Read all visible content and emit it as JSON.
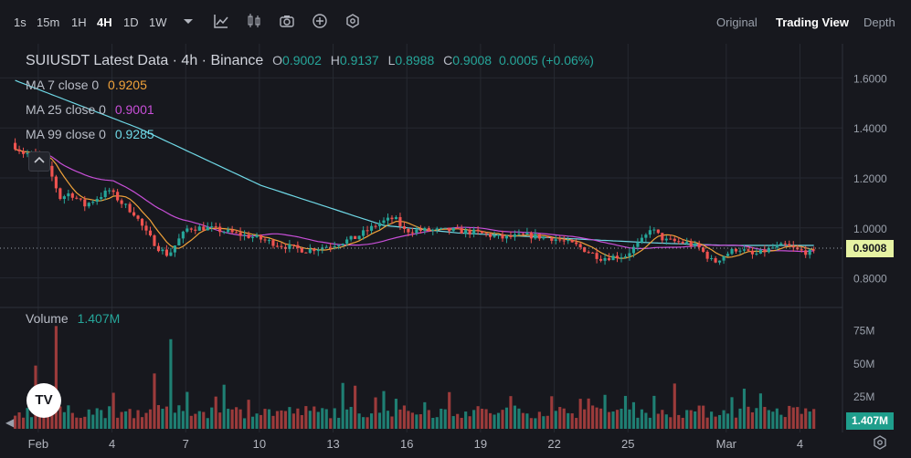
{
  "toolbar": {
    "timeframes": [
      "1s",
      "15m",
      "1H",
      "4H",
      "1D",
      "1W"
    ],
    "active_timeframe": "4H",
    "tools": [
      "chevron-down-icon",
      "indicator-icon",
      "candle-type-icon",
      "camera-icon",
      "plus-circle-icon",
      "settings-hex-icon"
    ],
    "views": [
      "Original",
      "Trading View",
      "Depth"
    ],
    "active_view": "Trading View"
  },
  "legend": {
    "title": "SUIUSDT Latest Data · 4h · Binance",
    "ohlc": {
      "o_label": "O",
      "o": "0.9002",
      "h_label": "H",
      "h": "0.9137",
      "l_label": "L",
      "l": "0.8988",
      "c_label": "C",
      "c": "0.9008",
      "change": "0.0005 (+0.06%)"
    },
    "ma7": {
      "label": "MA 7 close 0",
      "value": "0.9205",
      "color": "#f0a23a"
    },
    "ma25": {
      "label": "MA 25 close 0",
      "value": "0.9001",
      "color": "#c84fd8"
    },
    "ma99": {
      "label": "MA 99 close 0",
      "value": "0.9285",
      "color": "#6fd8e6"
    },
    "volume": {
      "label": "Volume",
      "value": "1.407M"
    }
  },
  "current_price": "0.9008",
  "current_volume": "1.407M",
  "colors": {
    "up": "#26a69a",
    "down": "#ef5350",
    "vol_up": "#1f7f73",
    "vol_down": "#9c3b3b",
    "grid": "#262931"
  },
  "chart_data": {
    "type": "candlestick",
    "price_axis": {
      "ticks": [
        "1.6000",
        "1.4000",
        "1.2000",
        "1.0000",
        "0.8000"
      ],
      "ylim": [
        0.7,
        1.7
      ]
    },
    "volume_axis": {
      "ticks": [
        "75M",
        "50M",
        "25M"
      ],
      "ylim": [
        0,
        90
      ]
    },
    "x_ticks": [
      "Feb",
      "4",
      "7",
      "10",
      "13",
      "16",
      "19",
      "22",
      "25",
      "Mar",
      "4"
    ],
    "x_tick_days": [
      1,
      4,
      7,
      10,
      13,
      16,
      19,
      22,
      25,
      29,
      32
    ],
    "x_range_days": [
      0,
      32.8
    ],
    "candle_interval_days": 0.1667,
    "price_anchors": [
      [
        0,
        1.34
      ],
      [
        0.5,
        1.3
      ],
      [
        1.2,
        1.29
      ],
      [
        1.6,
        1.22
      ],
      [
        2.0,
        1.12
      ],
      [
        2.4,
        1.14
      ],
      [
        3.0,
        1.09
      ],
      [
        3.5,
        1.12
      ],
      [
        4.0,
        1.15
      ],
      [
        4.5,
        1.1
      ],
      [
        5.0,
        1.06
      ],
      [
        5.5,
        0.98
      ],
      [
        6.0,
        0.92
      ],
      [
        6.4,
        0.89
      ],
      [
        6.8,
        0.95
      ],
      [
        7.2,
        1.0
      ],
      [
        8.0,
        1.0
      ],
      [
        9.0,
        0.98
      ],
      [
        10.0,
        0.96
      ],
      [
        11.0,
        0.93
      ],
      [
        12.0,
        0.91
      ],
      [
        13.0,
        0.93
      ],
      [
        14.0,
        0.96
      ],
      [
        15.0,
        1.02
      ],
      [
        15.6,
        1.04
      ],
      [
        16.0,
        0.99
      ],
      [
        17.0,
        0.99
      ],
      [
        18.0,
        0.99
      ],
      [
        19.0,
        0.98
      ],
      [
        20.0,
        0.96
      ],
      [
        21.0,
        0.97
      ],
      [
        22.0,
        0.96
      ],
      [
        23.0,
        0.93
      ],
      [
        24.0,
        0.88
      ],
      [
        25.0,
        0.89
      ],
      [
        25.8,
        0.96
      ],
      [
        26.0,
        1.0
      ],
      [
        26.6,
        0.95
      ],
      [
        27.5,
        0.94
      ],
      [
        28.0,
        0.92
      ],
      [
        28.6,
        0.86
      ],
      [
        29.0,
        0.89
      ],
      [
        29.6,
        0.92
      ],
      [
        30.2,
        0.89
      ],
      [
        31.0,
        0.92
      ],
      [
        31.5,
        0.93
      ],
      [
        32.0,
        0.91
      ],
      [
        32.6,
        0.9
      ]
    ],
    "ma99_anchors": [
      [
        0,
        1.59
      ],
      [
        5.0,
        1.4
      ],
      [
        10.0,
        1.17
      ],
      [
        15.0,
        1.01
      ],
      [
        18.0,
        0.98
      ],
      [
        22.0,
        0.96
      ],
      [
        26.0,
        0.94
      ],
      [
        29.0,
        0.93
      ],
      [
        32.6,
        0.93
      ]
    ],
    "volume_spikes": [
      [
        1.6,
        78
      ],
      [
        6.4,
        68
      ],
      [
        0.9,
        48
      ],
      [
        5.6,
        42
      ],
      [
        7.0,
        28
      ],
      [
        26.0,
        25
      ],
      [
        29.2,
        24
      ]
    ],
    "volume_base": 8
  }
}
